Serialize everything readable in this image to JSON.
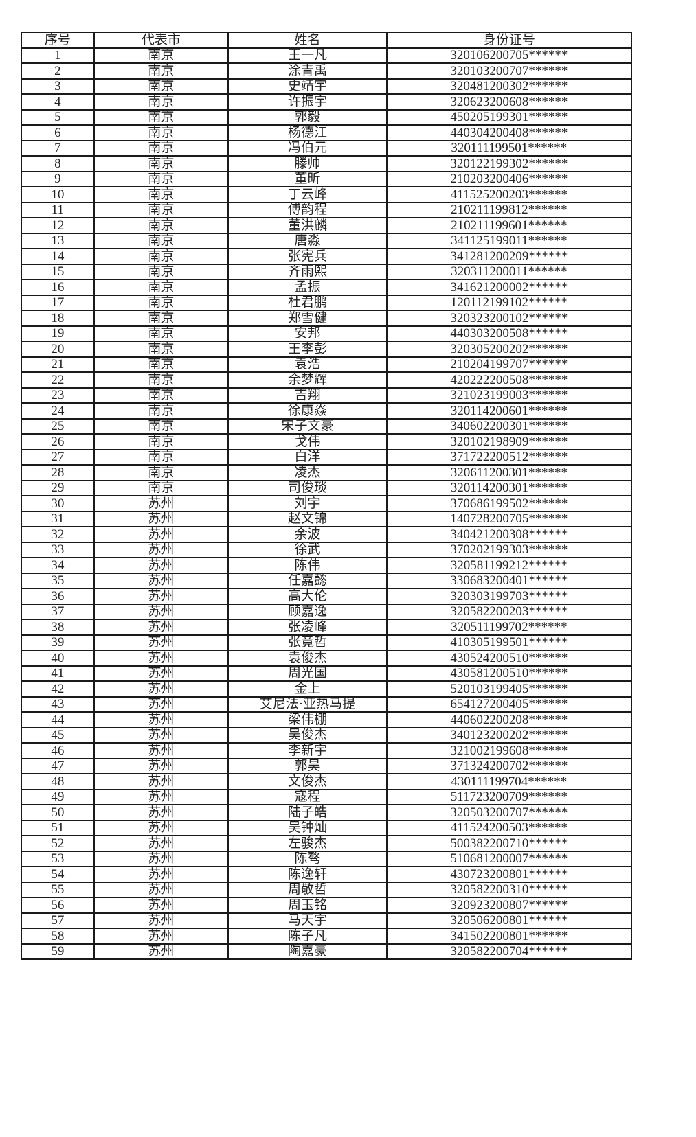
{
  "headers": [
    "序号",
    "代表市",
    "姓名",
    "身份证号"
  ],
  "rows": [
    [
      "1",
      "南京",
      "王一凡",
      "320106200705******"
    ],
    [
      "2",
      "南京",
      "涂青禹",
      "320103200707******"
    ],
    [
      "3",
      "南京",
      "史靖宇",
      "320481200302******"
    ],
    [
      "4",
      "南京",
      "许振宇",
      "320623200608******"
    ],
    [
      "5",
      "南京",
      "郭毅",
      "450205199301******"
    ],
    [
      "6",
      "南京",
      "杨德江",
      "440304200408******"
    ],
    [
      "7",
      "南京",
      "冯伯元",
      "320111199501******"
    ],
    [
      "8",
      "南京",
      "滕帅",
      "320122199302******"
    ],
    [
      "9",
      "南京",
      "董昕",
      "210203200406******"
    ],
    [
      "10",
      "南京",
      "丁云峰",
      "411525200203******"
    ],
    [
      "11",
      "南京",
      "傅韵程",
      "210211199812******"
    ],
    [
      "12",
      "南京",
      "董洪麟",
      "210211199601******"
    ],
    [
      "13",
      "南京",
      "唐淼",
      "341125199011******"
    ],
    [
      "14",
      "南京",
      "张宪兵",
      "341281200209******"
    ],
    [
      "15",
      "南京",
      "齐雨熙",
      "320311200011******"
    ],
    [
      "16",
      "南京",
      "孟振",
      "341621200002******"
    ],
    [
      "17",
      "南京",
      "杜君鹏",
      "120112199102******"
    ],
    [
      "18",
      "南京",
      "郑雪健",
      "320323200102******"
    ],
    [
      "19",
      "南京",
      "安邦",
      "440303200508******"
    ],
    [
      "20",
      "南京",
      "王李彭",
      "320305200202******"
    ],
    [
      "21",
      "南京",
      "袁浩",
      "210204199707******"
    ],
    [
      "22",
      "南京",
      "余梦辉",
      "420222200508******"
    ],
    [
      "23",
      "南京",
      "吉翔",
      "321023199003******"
    ],
    [
      "24",
      "南京",
      "徐康焱",
      "320114200601******"
    ],
    [
      "25",
      "南京",
      "宋子文豪",
      "340602200301******"
    ],
    [
      "26",
      "南京",
      "戈伟",
      "320102198909******"
    ],
    [
      "27",
      "南京",
      "白洋",
      "371722200512******"
    ],
    [
      "28",
      "南京",
      "凌杰",
      "320611200301******"
    ],
    [
      "29",
      "南京",
      "司俊琰",
      "320114200301******"
    ],
    [
      "30",
      "苏州",
      "刘宇",
      "370686199502******"
    ],
    [
      "31",
      "苏州",
      "赵文锦",
      "140728200705******"
    ],
    [
      "32",
      "苏州",
      "余波",
      "340421200308******"
    ],
    [
      "33",
      "苏州",
      "徐武",
      "370202199303******"
    ],
    [
      "34",
      "苏州",
      "陈伟",
      "320581199212******"
    ],
    [
      "35",
      "苏州",
      "任嘉懿",
      "330683200401******"
    ],
    [
      "36",
      "苏州",
      "高大伦",
      "320303199703******"
    ],
    [
      "37",
      "苏州",
      "顾嘉逸",
      "320582200203******"
    ],
    [
      "38",
      "苏州",
      "张凌峰",
      "320511199702******"
    ],
    [
      "39",
      "苏州",
      "张竟哲",
      "410305199501******"
    ],
    [
      "40",
      "苏州",
      "袁俊杰",
      "430524200510******"
    ],
    [
      "41",
      "苏州",
      "周光国",
      "430581200510******"
    ],
    [
      "42",
      "苏州",
      "金上",
      "520103199405******"
    ],
    [
      "43",
      "苏州",
      "艾尼法·亚热马提",
      "654127200405******"
    ],
    [
      "44",
      "苏州",
      "梁伟棚",
      "440602200208******"
    ],
    [
      "45",
      "苏州",
      "吴俊杰",
      "340123200202******"
    ],
    [
      "46",
      "苏州",
      "李新宇",
      "321002199608******"
    ],
    [
      "47",
      "苏州",
      "郭昊",
      "371324200702******"
    ],
    [
      "48",
      "苏州",
      "文俊杰",
      "430111199704******"
    ],
    [
      "49",
      "苏州",
      "寇程",
      "511723200709******"
    ],
    [
      "50",
      "苏州",
      "陆子皓",
      "320503200707******"
    ],
    [
      "51",
      "苏州",
      "吴钟灿",
      "411524200503******"
    ],
    [
      "52",
      "苏州",
      "左骏杰",
      "500382200710******"
    ],
    [
      "53",
      "苏州",
      "陈骜",
      "510681200007******"
    ],
    [
      "54",
      "苏州",
      "陈逸轩",
      "430723200801******"
    ],
    [
      "55",
      "苏州",
      "周敬哲",
      "320582200310******"
    ],
    [
      "56",
      "苏州",
      "周玉铭",
      "320923200807******"
    ],
    [
      "57",
      "苏州",
      "马天宇",
      "320506200801******"
    ],
    [
      "58",
      "苏州",
      "陈子凡",
      "341502200801******"
    ],
    [
      "59",
      "苏州",
      "陶嘉豪",
      "320582200704******"
    ]
  ]
}
